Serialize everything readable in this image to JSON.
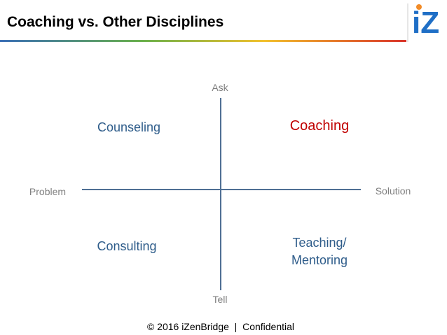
{
  "header": {
    "title": "Coaching vs. Other Disciplines",
    "logo": "iZ"
  },
  "axes": {
    "top": "Ask",
    "bottom": "Tell",
    "left": "Problem",
    "right": "Solution"
  },
  "quadrants": {
    "top_left": "Counseling",
    "top_right": "Coaching",
    "bottom_left": "Consulting",
    "bottom_right": [
      "Teaching/",
      "Mentoring"
    ]
  },
  "footer": "© 2016 iZenBridge  |  Confidential"
}
